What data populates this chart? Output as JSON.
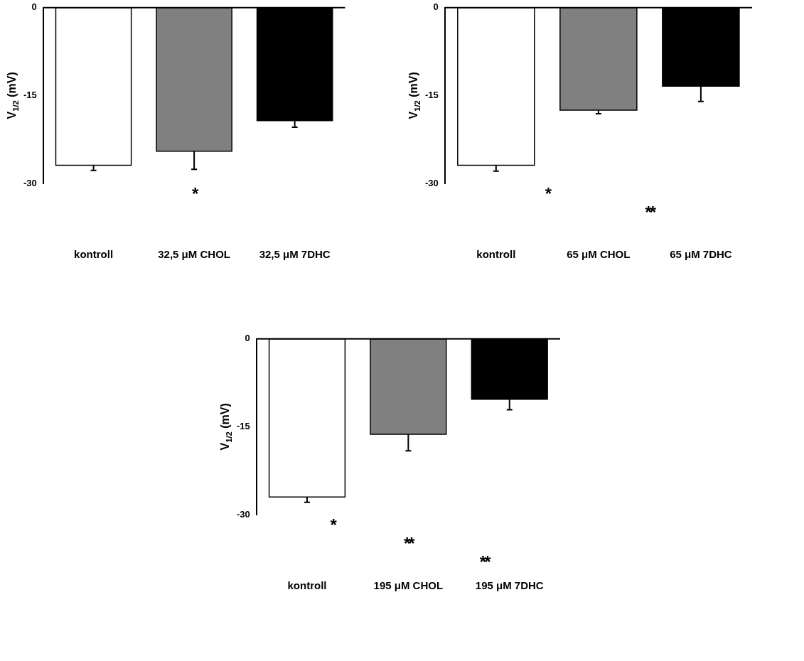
{
  "chart_data": [
    {
      "type": "bar",
      "ylabel": "V$_{1/2}$ (mV)",
      "categories": [
        "kontroll",
        "32,5 μM CHOL",
        "32,5 μM 7DHC"
      ],
      "values": [
        -26.9,
        -24.5,
        -19.3
      ],
      "colors": [
        "#ffffff",
        "#808080",
        "#000000"
      ],
      "errors": [
        [
          -27.8,
          -26.9
        ],
        [
          -27.6,
          -24.5
        ],
        [
          -20.4,
          -19.3
        ]
      ],
      "ylim": [
        -30,
        0
      ],
      "yticks": [
        -30,
        -15,
        0
      ],
      "annotations": [
        "*"
      ]
    },
    {
      "type": "bar",
      "ylabel": "V$_{1/2}$ (mV)",
      "categories": [
        "kontroll",
        "65 μM CHOL",
        "65 μM 7DHC"
      ],
      "values": [
        -26.9,
        -17.5,
        -13.4
      ],
      "colors": [
        "#ffffff",
        "#808080",
        "#000000"
      ],
      "errors": [
        [
          -27.9,
          -26.9
        ],
        [
          -18.1,
          -17.5
        ],
        [
          -16.0,
          -13.4
        ]
      ],
      "ylim": [
        -30,
        0
      ],
      "yticks": [
        -30,
        -15,
        0
      ],
      "annotations": [
        "*",
        "**"
      ]
    },
    {
      "type": "bar",
      "ylabel": "V$_{1/2}$ (mV)",
      "categories": [
        "kontroll",
        "195 μM CHOL",
        "195 μM 7DHC"
      ],
      "values": [
        -27.0,
        -16.3,
        -10.3
      ],
      "colors": [
        "#ffffff",
        "#808080",
        "#000000"
      ],
      "errors": [
        [
          -27.9,
          -27.0
        ],
        [
          -19.1,
          -16.3
        ],
        [
          -12.1,
          -10.3
        ]
      ],
      "ylim": [
        -30,
        0
      ],
      "yticks": [
        -30,
        -15,
        0
      ],
      "annotations": [
        "*",
        "**",
        "**"
      ]
    }
  ]
}
